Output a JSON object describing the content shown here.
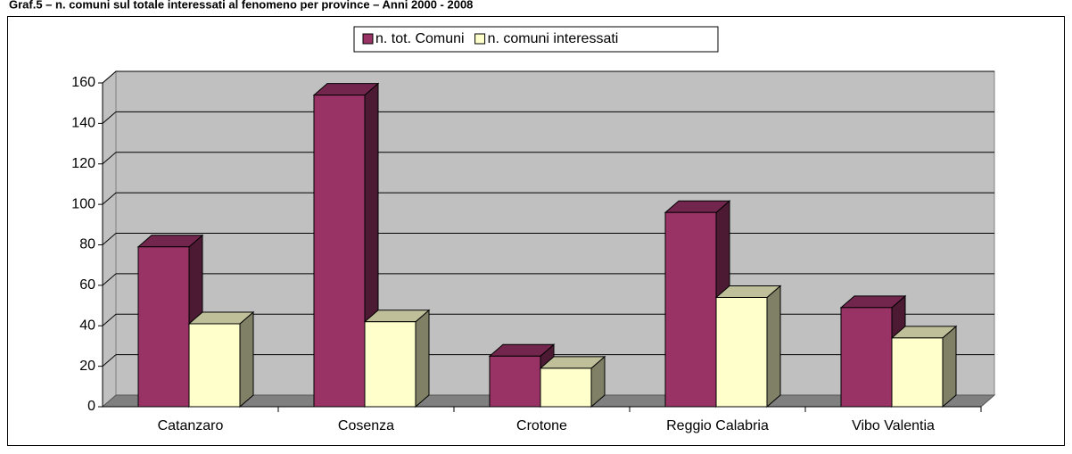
{
  "chart_data": {
    "type": "bar3d",
    "title": "Graf.5 – n. comuni sul totale interessati al fenomeno per province – Anni 2000 - 2008",
    "categories": [
      "Catanzaro",
      "Cosenza",
      "Crotone",
      "Reggio Calabria",
      "Vibo Valentia"
    ],
    "series": [
      {
        "name": "n. tot. Comuni",
        "color": "#993366",
        "values": [
          79,
          154,
          25,
          96,
          49
        ]
      },
      {
        "name": "n. comuni interessati",
        "color": "#ffffcc",
        "values": [
          41,
          42,
          19,
          54,
          34
        ]
      }
    ],
    "ylim": [
      0,
      160
    ],
    "yticks": [
      0,
      20,
      40,
      60,
      80,
      100,
      120,
      140,
      160
    ],
    "grid": true,
    "legend": "top"
  }
}
